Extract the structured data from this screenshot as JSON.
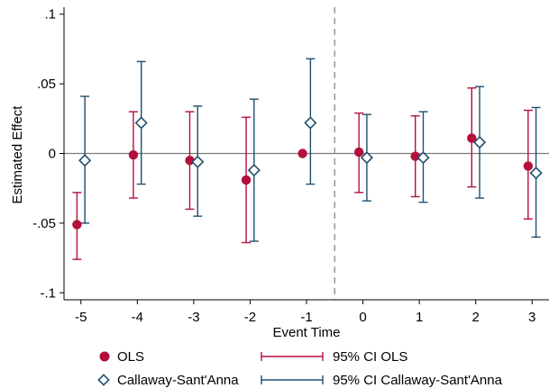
{
  "colors": {
    "ols": "#b5103c",
    "cs": "#1f4e6f",
    "zero_line": "#7a7a7a",
    "ref_line": "#8a8a8a",
    "axis": "#000000",
    "background": "#ffffff"
  },
  "chart_data": {
    "type": "scatter",
    "xlabel": "Event Time",
    "ylabel": "Estimated Effect",
    "xlim": [
      -5.3,
      3.3
    ],
    "ylim": [
      -0.105,
      0.105
    ],
    "x_ticks": [
      -5,
      -4,
      -3,
      -2,
      -1,
      0,
      1,
      2,
      3
    ],
    "x_tick_labels": [
      "-5",
      "-4",
      "-3",
      "-2",
      "-1",
      "0",
      "1",
      "2",
      "3"
    ],
    "y_ticks": [
      -0.1,
      -0.05,
      0,
      0.05,
      0.1
    ],
    "y_tick_labels": [
      "-.1",
      "-.05",
      "0",
      ".05",
      ".1"
    ],
    "reference_line_x": -0.5,
    "zero_line_y": 0,
    "grid": false,
    "legend_position": "bottom",
    "series": [
      {
        "name": "OLS",
        "ci_name": "95% CI OLS",
        "marker": "filled-circle",
        "offset": -0.07,
        "x": [
          -5,
          -4,
          -3,
          -2,
          -1,
          0,
          1,
          2,
          3
        ],
        "estimate": [
          -0.051,
          -0.001,
          -0.005,
          -0.019,
          0.0,
          0.001,
          -0.002,
          0.011,
          -0.009
        ],
        "ci_low": [
          -0.076,
          -0.032,
          -0.04,
          -0.064,
          null,
          -0.028,
          -0.031,
          -0.024,
          -0.047
        ],
        "ci_high": [
          -0.028,
          0.03,
          0.03,
          0.026,
          null,
          0.029,
          0.027,
          0.047,
          0.031
        ]
      },
      {
        "name": "Callaway-Sant'Anna",
        "ci_name": "95% CI Callaway-Sant'Anna",
        "marker": "hollow-diamond",
        "offset": 0.07,
        "x": [
          -5,
          -4,
          -3,
          -2,
          -1,
          0,
          1,
          2,
          3
        ],
        "estimate": [
          -0.005,
          0.022,
          -0.006,
          -0.012,
          0.022,
          -0.003,
          -0.003,
          0.008,
          -0.014
        ],
        "ci_low": [
          -0.05,
          -0.022,
          -0.045,
          -0.063,
          -0.022,
          -0.034,
          -0.035,
          -0.032,
          -0.06
        ],
        "ci_high": [
          0.041,
          0.066,
          0.034,
          0.039,
          0.068,
          0.028,
          0.03,
          0.048,
          0.033
        ]
      }
    ]
  }
}
